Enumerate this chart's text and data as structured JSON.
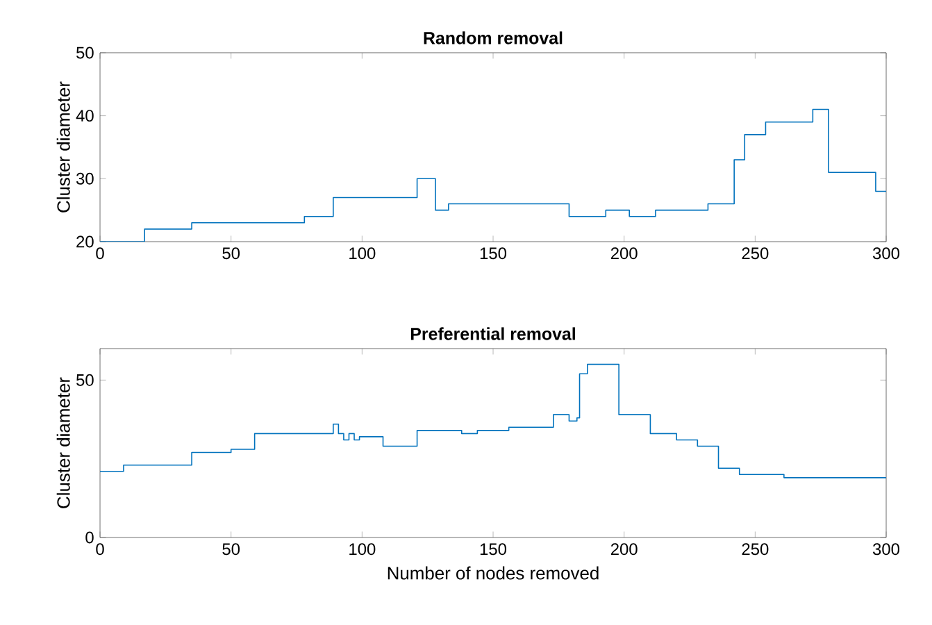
{
  "chart_data": [
    {
      "type": "step",
      "title": "Random removal",
      "ylabel": "Cluster diameter",
      "color": "#0072bd",
      "grid": false,
      "marker": "none",
      "x": [
        0,
        17,
        35,
        78,
        89,
        121,
        128,
        133,
        179,
        193,
        202,
        212,
        232,
        242,
        246,
        254,
        272,
        278,
        296,
        300
      ],
      "values": [
        20,
        22,
        23,
        24,
        27,
        30,
        25,
        26,
        24,
        25,
        24,
        25,
        26,
        33,
        37,
        39,
        41,
        31,
        28,
        28
      ],
      "xlim": [
        0,
        300
      ],
      "ylim": [
        20,
        50
      ],
      "xticks": [
        0,
        50,
        100,
        150,
        200,
        250,
        300
      ],
      "yticks": [
        20,
        30,
        40,
        50
      ]
    },
    {
      "type": "step",
      "title": "Preferential removal",
      "xlabel": "Number of nodes removed",
      "ylabel": "Cluster diameter",
      "color": "#0072bd",
      "grid": false,
      "marker": "none",
      "x": [
        0,
        9,
        35,
        50,
        59,
        89,
        91,
        93,
        95,
        97,
        99,
        108,
        121,
        138,
        144,
        156,
        173,
        179,
        182,
        183,
        186,
        198,
        210,
        220,
        228,
        236,
        244,
        261,
        300
      ],
      "values": [
        21,
        23,
        27,
        28,
        33,
        36,
        33,
        31,
        33,
        31,
        32,
        29,
        34,
        33,
        34,
        35,
        39,
        37,
        38,
        52,
        55,
        39,
        33,
        31,
        29,
        22,
        20,
        19,
        19
      ],
      "xlim": [
        0,
        300
      ],
      "ylim": [
        0,
        60
      ],
      "xticks": [
        0,
        50,
        100,
        150,
        200,
        250,
        300
      ],
      "yticks": [
        0,
        50
      ]
    }
  ]
}
